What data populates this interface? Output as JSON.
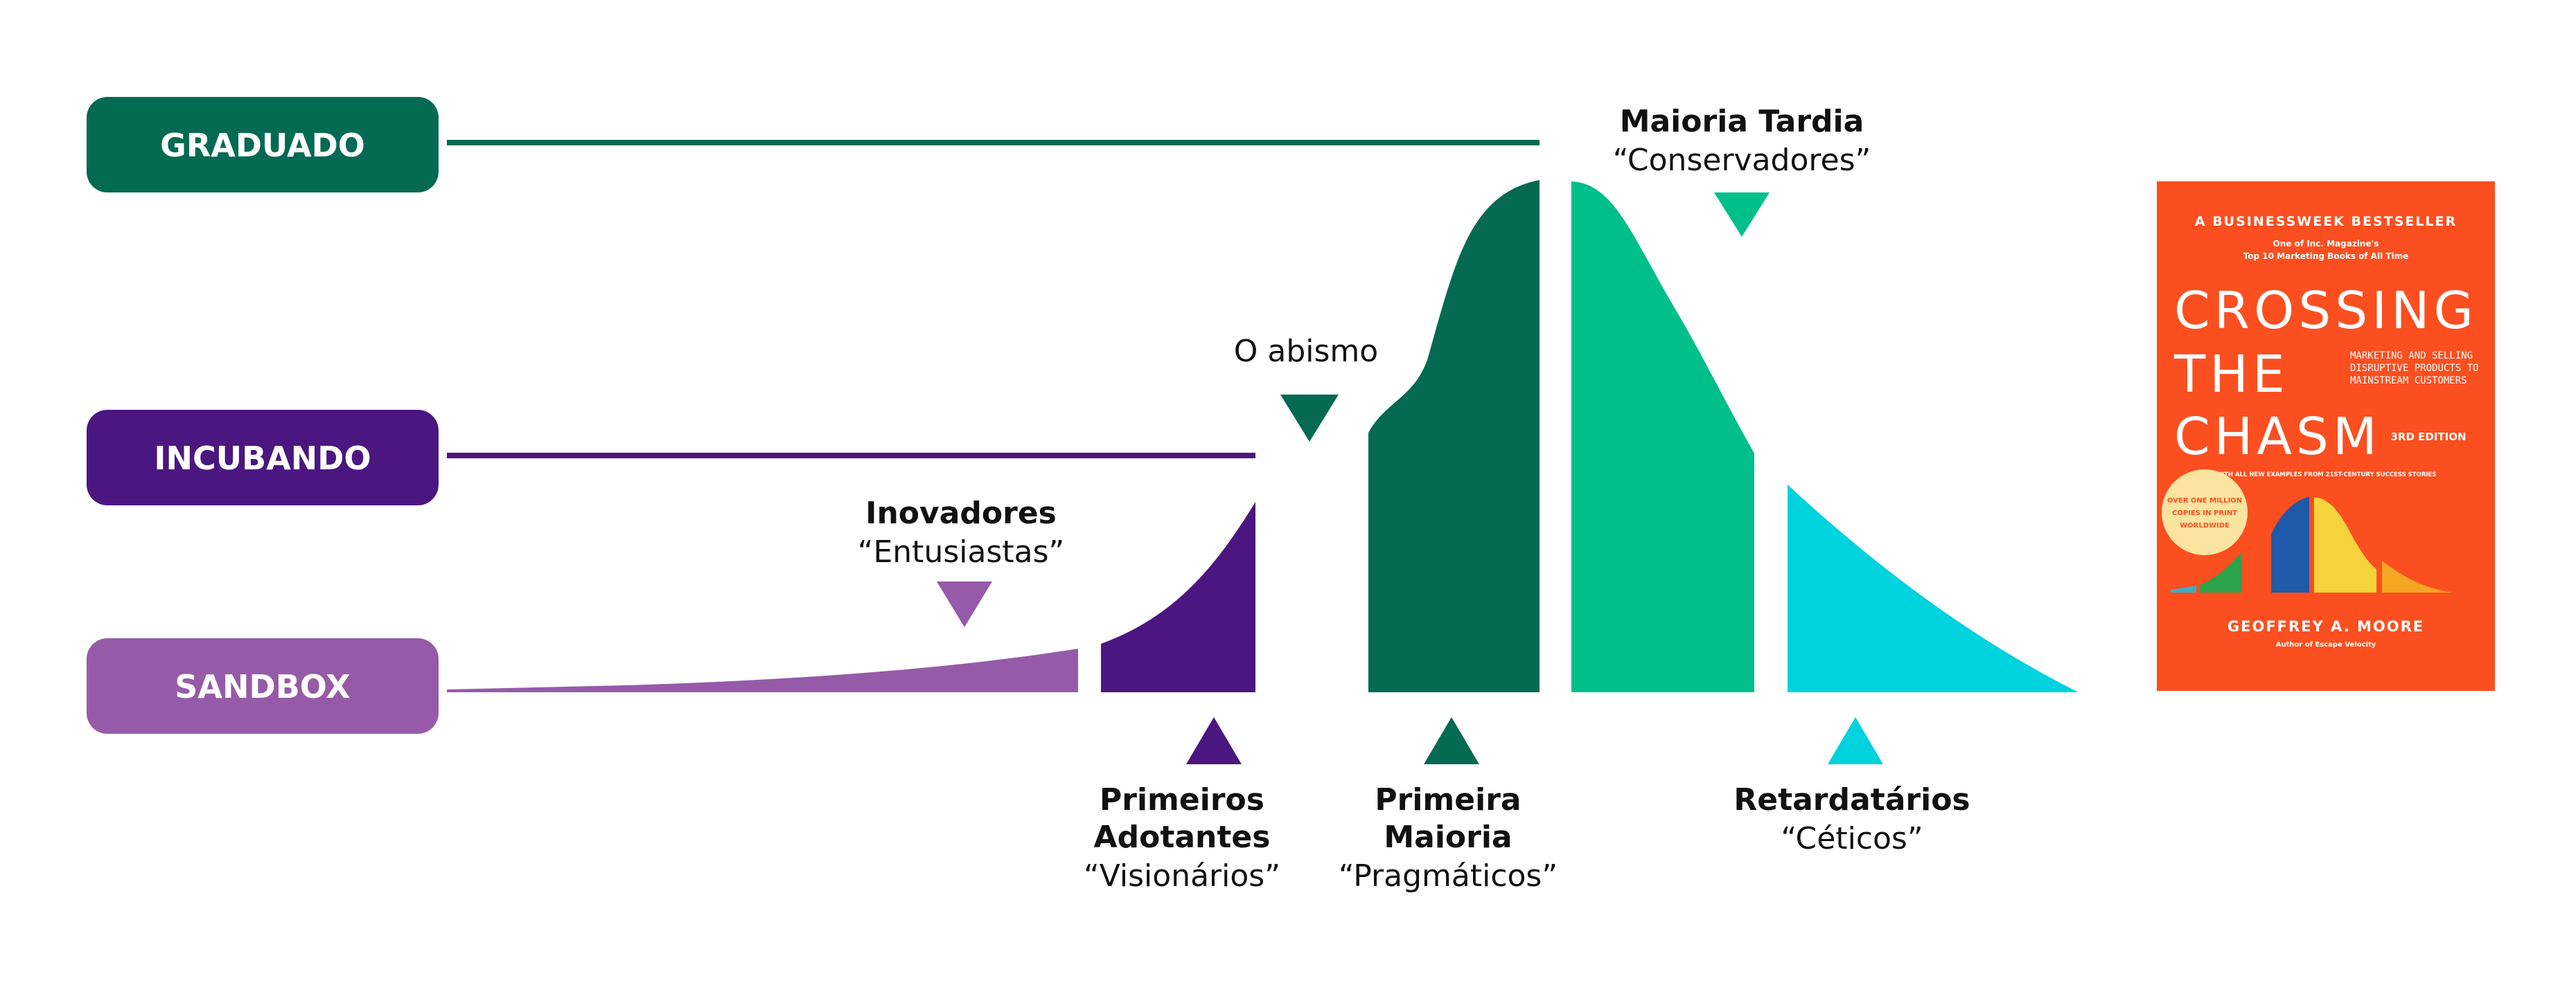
{
  "stages": {
    "graduated": {
      "label": "GRADUADO",
      "color": "#046A51"
    },
    "incubating": {
      "label": "INCUBANDO",
      "color": "#4B1680"
    },
    "sandbox": {
      "label": "SANDBOX",
      "color": "#955BA8"
    }
  },
  "curve_segments": {
    "innovators_color": "#955BA8",
    "early_adopters_color": "#4B1680",
    "early_majority_color": "#046A51",
    "late_majority_color": "#00BF8A",
    "laggards_color": "#00D2DE"
  },
  "annotations": {
    "chasm": {
      "title": "O abismo"
    },
    "innovators": {
      "title": "Inovadores",
      "subtitle": "“Entusiastas”"
    },
    "early_adopters": {
      "title_line1": "Primeiros",
      "title_line2": "Adotantes",
      "subtitle": "“Visionários”"
    },
    "early_majority": {
      "title_line1": "Primeira",
      "title_line2": "Maioria",
      "subtitle": "“Pragmáticos”"
    },
    "late_majority": {
      "title": "Maioria Tardia",
      "subtitle": "“Conservadores”"
    },
    "laggards": {
      "title": "Retardatários",
      "subtitle": "“Céticos”"
    }
  },
  "book_cover": {
    "background": "#FB4F20",
    "banner": "A BUSINESSWEEK BESTSELLER",
    "tagline_line1": "One of Inc. Magazine's",
    "tagline_line2": "Top 10 Marketing Books of All Time",
    "title_line1": "CROSSING",
    "title_line2": "THE",
    "title_line3": "CHASM",
    "subtitle_line1": "MARKETING AND SELLING",
    "subtitle_line2": "DISRUPTIVE PRODUCTS TO",
    "subtitle_line3": "MAINSTREAM CUSTOMERS",
    "edition": "3RD EDITION",
    "examples": "WITH ALL NEW EXAMPLES FROM 21ST-CENTURY SUCCESS STORIES",
    "badge_line1": "OVER ONE MILLION",
    "badge_line2": "COPIES IN PRINT",
    "badge_line3": "WORLDWIDE",
    "author": "GEOFFREY A. MOORE",
    "author_note": "Author of Escape Velocity"
  }
}
